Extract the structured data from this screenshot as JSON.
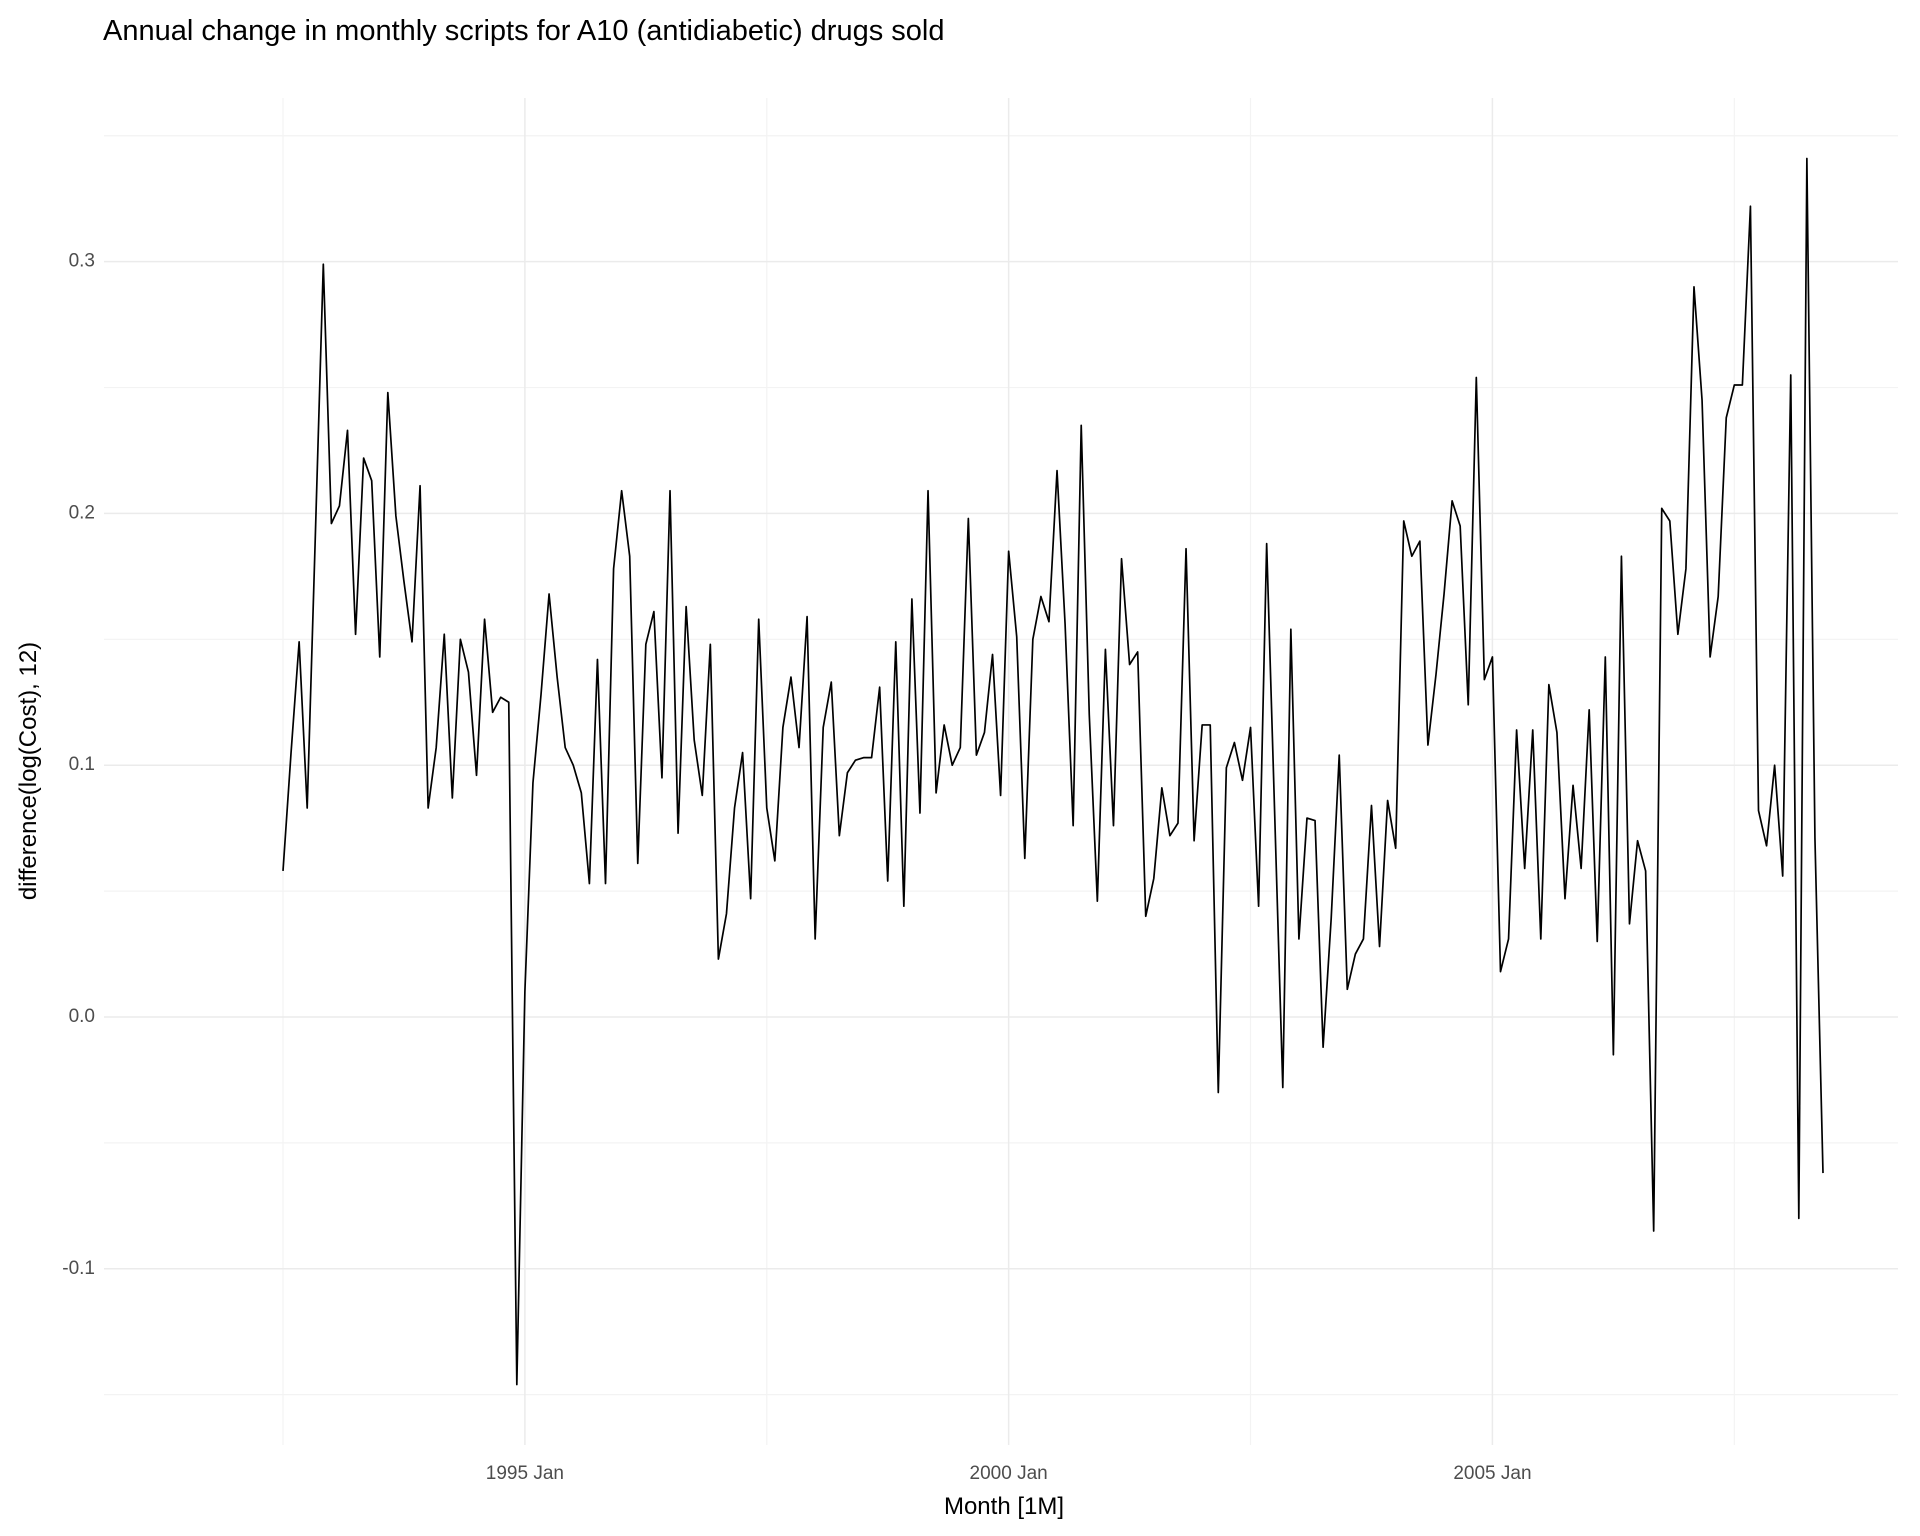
{
  "chart_data": {
    "type": "line",
    "title": "Annual change in monthly scripts for A10 (antidiabetic) drugs sold",
    "x_label": "Month [1M]",
    "y_label": "difference(log(Cost), 12)",
    "x": [
      "1992 Jul",
      "1992 Aug",
      "1992 Sep",
      "1992 Oct",
      "1992 Nov",
      "1992 Dec",
      "1993 Jan",
      "1993 Feb",
      "1993 Mar",
      "1993 Apr",
      "1993 May",
      "1993 Jun",
      "1993 Jul",
      "1993 Aug",
      "1993 Sep",
      "1993 Oct",
      "1993 Nov",
      "1993 Dec",
      "1994 Jan",
      "1994 Feb",
      "1994 Mar",
      "1994 Apr",
      "1994 May",
      "1994 Jun",
      "1994 Jul",
      "1994 Aug",
      "1994 Sep",
      "1994 Oct",
      "1994 Nov",
      "1994 Dec",
      "1995 Jan",
      "1995 Feb",
      "1995 Mar",
      "1995 Apr",
      "1995 May",
      "1995 Jun",
      "1995 Jul",
      "1995 Aug",
      "1995 Sep",
      "1995 Oct",
      "1995 Nov",
      "1995 Dec",
      "1996 Jan",
      "1996 Feb",
      "1996 Mar",
      "1996 Apr",
      "1996 May",
      "1996 Jun",
      "1996 Jul",
      "1996 Aug",
      "1996 Sep",
      "1996 Oct",
      "1996 Nov",
      "1996 Dec",
      "1997 Jan",
      "1997 Feb",
      "1997 Mar",
      "1997 Apr",
      "1997 May",
      "1997 Jun",
      "1997 Jul",
      "1997 Aug",
      "1997 Sep",
      "1997 Oct",
      "1997 Nov",
      "1997 Dec",
      "1998 Jan",
      "1998 Feb",
      "1998 Mar",
      "1998 Apr",
      "1998 May",
      "1998 Jun",
      "1998 Jul",
      "1998 Aug",
      "1998 Sep",
      "1998 Oct",
      "1998 Nov",
      "1998 Dec",
      "1999 Jan",
      "1999 Feb",
      "1999 Mar",
      "1999 Apr",
      "1999 May",
      "1999 Jun",
      "1999 Jul",
      "1999 Aug",
      "1999 Sep",
      "1999 Oct",
      "1999 Nov",
      "1999 Dec",
      "2000 Jan",
      "2000 Feb",
      "2000 Mar",
      "2000 Apr",
      "2000 May",
      "2000 Jun",
      "2000 Jul",
      "2000 Aug",
      "2000 Sep",
      "2000 Oct",
      "2000 Nov",
      "2000 Dec",
      "2001 Jan",
      "2001 Feb",
      "2001 Mar",
      "2001 Apr",
      "2001 May",
      "2001 Jun",
      "2001 Jul",
      "2001 Aug",
      "2001 Sep",
      "2001 Oct",
      "2001 Nov",
      "2001 Dec",
      "2002 Jan",
      "2002 Feb",
      "2002 Mar",
      "2002 Apr",
      "2002 May",
      "2002 Jun",
      "2002 Jul",
      "2002 Aug",
      "2002 Sep",
      "2002 Oct",
      "2002 Nov",
      "2002 Dec",
      "2003 Jan",
      "2003 Feb",
      "2003 Mar",
      "2003 Apr",
      "2003 May",
      "2003 Jun",
      "2003 Jul",
      "2003 Aug",
      "2003 Sep",
      "2003 Oct",
      "2003 Nov",
      "2003 Dec",
      "2004 Jan",
      "2004 Feb",
      "2004 Mar",
      "2004 Apr",
      "2004 May",
      "2004 Jun",
      "2004 Jul",
      "2004 Aug",
      "2004 Sep",
      "2004 Oct",
      "2004 Nov",
      "2004 Dec",
      "2005 Jan",
      "2005 Feb",
      "2005 Mar",
      "2005 Apr",
      "2005 May",
      "2005 Jun",
      "2005 Jul",
      "2005 Aug",
      "2005 Sep",
      "2005 Oct",
      "2005 Nov",
      "2005 Dec",
      "2006 Jan",
      "2006 Feb",
      "2006 Mar",
      "2006 Apr",
      "2006 May",
      "2006 Jun",
      "2006 Jul",
      "2006 Aug",
      "2006 Sep",
      "2006 Oct",
      "2006 Nov",
      "2006 Dec",
      "2007 Jan",
      "2007 Feb",
      "2007 Mar",
      "2007 Apr",
      "2007 May",
      "2007 Jun",
      "2007 Jul",
      "2007 Aug",
      "2007 Sep",
      "2007 Oct",
      "2007 Nov",
      "2007 Dec",
      "2008 Jan",
      "2008 Feb",
      "2008 Mar",
      "2008 Apr",
      "2008 May",
      "2008 Jun"
    ],
    "values": [
      0.058,
      0.105,
      0.149,
      0.083,
      0.19,
      0.299,
      0.196,
      0.203,
      0.233,
      0.152,
      0.222,
      0.213,
      0.143,
      0.248,
      0.199,
      0.173,
      0.149,
      0.211,
      0.083,
      0.107,
      0.152,
      0.087,
      0.15,
      0.137,
      0.096,
      0.158,
      0.121,
      0.127,
      0.125,
      -0.146,
      0.01,
      0.093,
      0.128,
      0.168,
      0.135,
      0.107,
      0.1,
      0.089,
      0.053,
      0.142,
      0.053,
      0.178,
      0.209,
      0.183,
      0.061,
      0.148,
      0.161,
      0.095,
      0.209,
      0.073,
      0.163,
      0.11,
      0.088,
      0.148,
      0.023,
      0.041,
      0.083,
      0.105,
      0.047,
      0.158,
      0.083,
      0.062,
      0.115,
      0.135,
      0.107,
      0.159,
      0.031,
      0.115,
      0.133,
      0.072,
      0.097,
      0.102,
      0.103,
      0.103,
      0.131,
      0.054,
      0.149,
      0.044,
      0.166,
      0.081,
      0.209,
      0.089,
      0.116,
      0.1,
      0.107,
      0.198,
      0.104,
      0.113,
      0.144,
      0.088,
      0.185,
      0.151,
      0.063,
      0.15,
      0.167,
      0.157,
      0.217,
      0.156,
      0.076,
      0.235,
      0.12,
      0.046,
      0.146,
      0.076,
      0.182,
      0.14,
      0.145,
      0.04,
      0.055,
      0.091,
      0.072,
      0.077,
      0.186,
      0.07,
      0.116,
      0.116,
      -0.03,
      0.099,
      0.109,
      0.094,
      0.115,
      0.044,
      0.188,
      0.08,
      -0.028,
      0.154,
      0.031,
      0.079,
      0.078,
      -0.012,
      0.039,
      0.104,
      0.011,
      0.025,
      0.031,
      0.084,
      0.028,
      0.086,
      0.067,
      0.197,
      0.183,
      0.189,
      0.108,
      0.136,
      0.168,
      0.205,
      0.195,
      0.124,
      0.254,
      0.134,
      0.143,
      0.018,
      0.031,
      0.114,
      0.059,
      0.114,
      0.031,
      0.132,
      0.113,
      0.047,
      0.092,
      0.059,
      0.122,
      0.03,
      0.143,
      -0.015,
      0.183,
      0.037,
      0.07,
      0.058,
      -0.085,
      0.202,
      0.197,
      0.152,
      0.178,
      0.29,
      0.245,
      0.143,
      0.167,
      0.238,
      0.251,
      0.251,
      0.322,
      0.082,
      0.068,
      0.1,
      0.056,
      0.255,
      -0.08,
      0.341,
      0.071,
      -0.062
    ],
    "color": "#000000",
    "xticks": [
      "1995 Jan",
      "2000 Jan",
      "2005 Jan"
    ],
    "ylim": [
      -0.17,
      0.365
    ],
    "yticks": [
      -0.1,
      {
        "value": 0,
        "label": "0.0"
      },
      0.1,
      0.2,
      0.3
    ],
    "grid": true
  }
}
